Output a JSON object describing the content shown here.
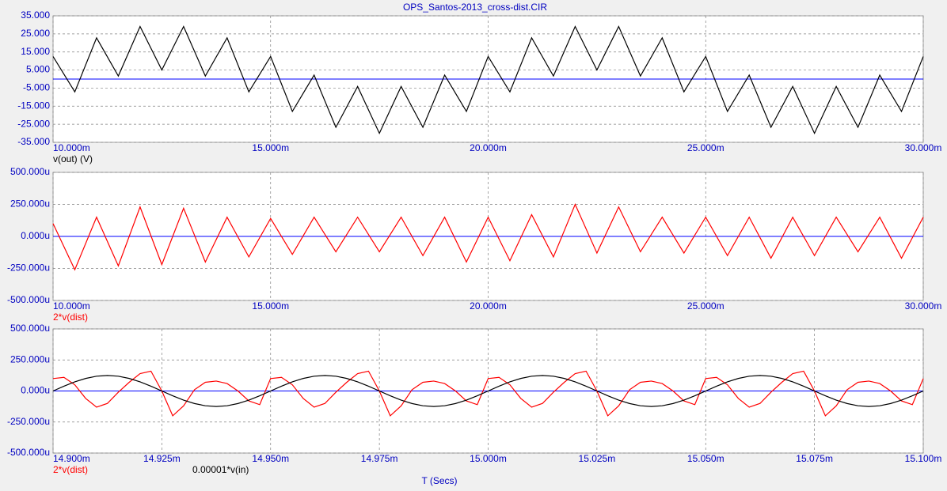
{
  "chart_data": [
    {
      "type": "line",
      "title": "OPS_Santos-2013_cross-dist.CIR",
      "x": [
        10,
        10.5,
        11,
        11.5,
        12,
        12.5,
        13,
        13.5,
        14,
        14.5,
        15,
        15.5,
        16,
        16.5,
        17,
        17.5,
        18,
        18.5,
        19,
        19.5,
        20,
        20.5,
        21,
        21.5,
        22,
        22.5,
        23,
        23.5,
        24,
        24.5,
        25,
        25.5,
        26,
        26.5,
        27,
        27.5,
        28,
        28.5,
        29,
        29.5,
        30
      ],
      "series": [
        {
          "name": "v(out) (V)",
          "color": "#000000",
          "values": [
            12.5,
            -7.1,
            22.8,
            1.7,
            29.1,
            5.0,
            29.1,
            1.7,
            22.8,
            -7.1,
            12.5,
            -17.9,
            2.2,
            -26.7,
            -4.1,
            -30,
            -4.1,
            -26.7,
            2.2,
            -17.9,
            12.5,
            -7.1,
            22.8,
            1.7,
            29.1,
            5.0,
            29.1,
            1.7,
            22.8,
            -7.1,
            12.5,
            -17.9,
            2.2,
            -26.7,
            -4.1,
            -30,
            -4.1,
            -26.7,
            2.2,
            -17.9,
            12.5
          ]
        }
      ],
      "xlim": [
        10,
        30
      ],
      "xticks": [
        {
          "value": 10,
          "label": "10.000m"
        },
        {
          "value": 15,
          "label": "15.000m"
        },
        {
          "value": 20,
          "label": "20.000m"
        },
        {
          "value": 25,
          "label": "25.000m"
        },
        {
          "value": 30,
          "label": "30.000m"
        }
      ],
      "ylim": [
        -35,
        35
      ],
      "yticks": [
        {
          "value": 35,
          "label": "35.000"
        },
        {
          "value": 25,
          "label": "25.000"
        },
        {
          "value": 15,
          "label": "15.000"
        },
        {
          "value": 5,
          "label": "5.000"
        },
        {
          "value": -5,
          "label": "-5.000"
        },
        {
          "value": -15,
          "label": "-15.000"
        },
        {
          "value": -25,
          "label": "-25.000"
        },
        {
          "value": -35,
          "label": "-35.000"
        }
      ],
      "grid": true
    },
    {
      "type": "line",
      "x": [
        10,
        10.5,
        11,
        11.5,
        12,
        12.5,
        13,
        13.5,
        14,
        14.5,
        15,
        15.5,
        16,
        16.5,
        17,
        17.5,
        18,
        18.5,
        19,
        19.5,
        20,
        20.5,
        21,
        21.5,
        22,
        22.5,
        23,
        23.5,
        24,
        24.5,
        25,
        25.5,
        26,
        26.5,
        27,
        27.5,
        28,
        28.5,
        29,
        29.5,
        30
      ],
      "series": [
        {
          "name": "2*v(dist)",
          "color": "#ff0000",
          "values": [
            100,
            -260,
            150,
            -230,
            230,
            -220,
            220,
            -200,
            150,
            -160,
            140,
            -140,
            150,
            -120,
            150,
            -120,
            150,
            -150,
            150,
            -200,
            150,
            -190,
            170,
            -160,
            250,
            -130,
            230,
            -120,
            150,
            -130,
            150,
            -150,
            150,
            -170,
            150,
            -150,
            150,
            -120,
            150,
            -170,
            150
          ]
        }
      ],
      "xlim": [
        10,
        30
      ],
      "xticks": [
        {
          "value": 10,
          "label": "10.000m"
        },
        {
          "value": 15,
          "label": "15.000m"
        },
        {
          "value": 20,
          "label": "20.000m"
        },
        {
          "value": 25,
          "label": "25.000m"
        },
        {
          "value": 30,
          "label": "30.000m"
        }
      ],
      "ylim": [
        -500,
        500
      ],
      "yticks": [
        {
          "value": 500,
          "label": "500.000u"
        },
        {
          "value": 250,
          "label": "250.000u"
        },
        {
          "value": 0,
          "label": "0.000u"
        },
        {
          "value": -250,
          "label": "-250.000u"
        },
        {
          "value": -500,
          "label": "-500.000u"
        }
      ],
      "grid": true
    },
    {
      "type": "line",
      "xlabel": "T (Secs)",
      "x": [
        14.9,
        14.9025,
        14.905,
        14.9075,
        14.91,
        14.9125,
        14.915,
        14.9175,
        14.92,
        14.9225,
        14.925,
        14.9275,
        14.93,
        14.9325,
        14.935,
        14.9375,
        14.94,
        14.9425,
        14.945,
        14.9475,
        14.95,
        14.9525,
        14.955,
        14.9575,
        14.96,
        14.9625,
        14.965,
        14.9675,
        14.97,
        14.9725,
        14.975,
        14.9775,
        14.98,
        14.9825,
        14.985,
        14.9875,
        14.99,
        14.9925,
        14.995,
        14.9975,
        15,
        15.0025,
        15.005,
        15.0075,
        15.01,
        15.0125,
        15.015,
        15.0175,
        15.02,
        15.0225,
        15.025,
        15.0275,
        15.03,
        15.0325,
        15.035,
        15.0375,
        15.04,
        15.0425,
        15.045,
        15.0475,
        15.05,
        15.0525,
        15.055,
        15.0575,
        15.06,
        15.0625,
        15.065,
        15.0675,
        15.07,
        15.0725,
        15.075,
        15.0775,
        15.08,
        15.0825,
        15.085,
        15.0875,
        15.09,
        15.0925,
        15.095,
        15.0975,
        15.1
      ],
      "series": [
        {
          "name": "2*v(dist)",
          "color": "#ff0000",
          "values": [
            100,
            110,
            50,
            -60,
            -130,
            -100,
            -10,
            70,
            140,
            160,
            0,
            -200,
            -120,
            10,
            70,
            80,
            60,
            0,
            -80,
            -110,
            100,
            110,
            50,
            -60,
            -130,
            -100,
            -10,
            70,
            140,
            160,
            0,
            -200,
            -120,
            10,
            70,
            80,
            60,
            0,
            -80,
            -110,
            100,
            110,
            50,
            -60,
            -130,
            -100,
            -10,
            70,
            140,
            160,
            0,
            -200,
            -120,
            10,
            70,
            80,
            60,
            0,
            -80,
            -110,
            100,
            110,
            50,
            -60,
            -130,
            -100,
            -10,
            70,
            140,
            160,
            0,
            -200,
            -120,
            10,
            70,
            80,
            60,
            0,
            -80,
            -110,
            100
          ]
        },
        {
          "name": "0.00001*v(in)",
          "color": "#000000",
          "values": [
            0,
            38.6,
            73.5,
            101.1,
            118.9,
            125,
            118.9,
            101.1,
            73.5,
            38.6,
            0,
            -38.6,
            -73.5,
            -101.1,
            -118.9,
            -125,
            -118.9,
            -101.1,
            -73.5,
            -38.6,
            0,
            38.6,
            73.5,
            101.1,
            118.9,
            125,
            118.9,
            101.1,
            73.5,
            38.6,
            0,
            -38.6,
            -73.5,
            -101.1,
            -118.9,
            -125,
            -118.9,
            -101.1,
            -73.5,
            -38.6,
            0,
            38.6,
            73.5,
            101.1,
            118.9,
            125,
            118.9,
            101.1,
            73.5,
            38.6,
            0,
            -38.6,
            -73.5,
            -101.1,
            -118.9,
            -125,
            -118.9,
            -101.1,
            -73.5,
            -38.6,
            0,
            38.6,
            73.5,
            101.1,
            118.9,
            125,
            118.9,
            101.1,
            73.5,
            38.6,
            0,
            -38.6,
            -73.5,
            -101.1,
            -118.9,
            -125,
            -118.9,
            -101.1,
            -73.5,
            -38.6,
            0
          ]
        }
      ],
      "xlim": [
        14.9,
        15.1
      ],
      "xticks": [
        {
          "value": 14.9,
          "label": "14.900m"
        },
        {
          "value": 14.925,
          "label": "14.925m"
        },
        {
          "value": 14.95,
          "label": "14.950m"
        },
        {
          "value": 14.975,
          "label": "14.975m"
        },
        {
          "value": 15,
          "label": "15.000m"
        },
        {
          "value": 15.025,
          "label": "15.025m"
        },
        {
          "value": 15.05,
          "label": "15.050m"
        },
        {
          "value": 15.075,
          "label": "15.075m"
        },
        {
          "value": 15.1,
          "label": "15.100m"
        }
      ],
      "ylim": [
        -500,
        500
      ],
      "yticks": [
        {
          "value": 500,
          "label": "500.000u"
        },
        {
          "value": 250,
          "label": "250.000u"
        },
        {
          "value": 0,
          "label": "0.000u"
        },
        {
          "value": -250,
          "label": "-250.000u"
        },
        {
          "value": -500,
          "label": "-500.000u"
        }
      ],
      "grid": true
    }
  ]
}
